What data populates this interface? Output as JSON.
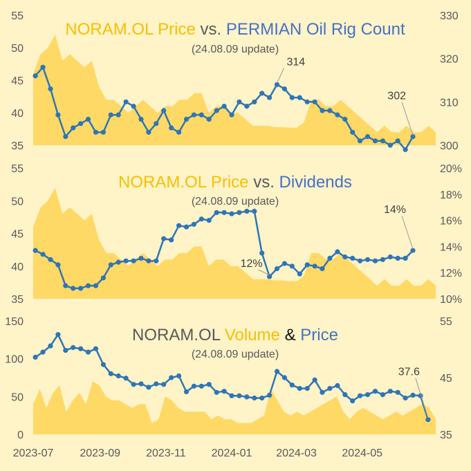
{
  "colors": {
    "background": "#fff3c8",
    "price_fill": "#ffd966",
    "series_line": "#2e75b6",
    "title_gold": "#f5c000",
    "title_blue": "#4472c4",
    "title_gray": "#595959",
    "axis_text": "#595959",
    "grid": "#d9cfa6"
  },
  "x_axis_labels": [
    "2023-07",
    "2023-09",
    "2023-11",
    "2024-01",
    "2024-03",
    "2024-05"
  ],
  "chart_data": [
    {
      "type": "area",
      "title_parts": [
        {
          "text": "NORAM.OL Price",
          "color": "gold"
        },
        {
          "text": " vs. ",
          "color": "gray"
        },
        {
          "text": "PERMIAN Oil Rig Count",
          "color": "blue"
        }
      ],
      "subtitle": "(24.08.09 update)",
      "y_left": {
        "ticks": [
          "55",
          "50",
          "45",
          "40",
          "35"
        ],
        "range": [
          35,
          55
        ]
      },
      "y_right": {
        "ticks": [
          "330",
          "320",
          "310",
          "300"
        ],
        "range": [
          300,
          330
        ]
      },
      "price_area": [
        46,
        49,
        50,
        52,
        48,
        49,
        48,
        47,
        48,
        44,
        42,
        42,
        41,
        40,
        41,
        42,
        41,
        40,
        41,
        41,
        42,
        42,
        43,
        43,
        40,
        41,
        41,
        40,
        40,
        39,
        38,
        38,
        38,
        37.8,
        37.8,
        37.7,
        37.7,
        38.5,
        42,
        42,
        41,
        41,
        42,
        41,
        40,
        39,
        38,
        37,
        38,
        37,
        37,
        38,
        37,
        37,
        38,
        37
      ]
    },
    {
      "type": "area",
      "title_parts": [
        {
          "text": "NORAM.OL Price",
          "color": "gold"
        },
        {
          "text": " vs. ",
          "color": "gray"
        },
        {
          "text": "Dividends",
          "color": "blue"
        }
      ],
      "subtitle": "(24.08.09 update)",
      "y_left": {
        "ticks": [
          "55",
          "50",
          "45",
          "40",
          "35"
        ],
        "range": [
          35,
          55
        ]
      },
      "y_right": {
        "ticks": [
          "20%",
          "18%",
          "16%",
          "14%",
          "12%",
          "10%"
        ],
        "range": [
          10,
          20
        ]
      },
      "price_area": [
        46,
        49,
        50,
        52,
        48,
        49,
        48,
        47,
        48,
        44,
        42,
        42,
        41,
        40,
        41,
        42,
        41,
        40,
        41,
        41,
        42,
        42,
        43,
        43,
        40,
        41,
        41,
        40,
        40,
        39,
        38,
        38,
        38,
        37.8,
        37.8,
        37.7,
        37.7,
        38.5,
        42,
        42,
        41,
        41,
        42,
        41,
        40,
        39,
        38,
        37,
        38,
        37,
        37,
        38,
        37,
        37,
        38,
        37
      ]
    },
    {
      "type": "area",
      "title_parts": [
        {
          "text": "NORAM.OL  ",
          "color": "gray"
        },
        {
          "text": "Volume",
          "color": "gold"
        },
        {
          "text": " & ",
          "color": "black"
        },
        {
          "text": "Price",
          "color": "blue"
        }
      ],
      "subtitle": "(24.08.09 update)",
      "y_left": {
        "ticks": [
          "150",
          "100",
          "50",
          "0"
        ],
        "range": [
          0,
          150
        ]
      },
      "y_right": {
        "ticks": [
          "55",
          "45",
          "35"
        ],
        "range": [
          35,
          55
        ]
      },
      "volume_area": [
        40,
        60,
        35,
        55,
        65,
        30,
        45,
        55,
        40,
        70,
        65,
        50,
        45,
        45,
        40,
        35,
        40,
        40,
        15,
        20,
        50,
        45,
        35,
        30,
        30,
        30,
        30,
        20,
        25,
        20,
        20,
        15,
        15,
        15,
        20,
        25,
        60,
        45,
        30,
        25,
        30,
        25,
        30,
        35,
        40,
        45,
        50,
        30,
        20,
        30,
        35,
        30,
        25,
        20,
        25,
        30,
        25,
        30,
        35,
        40,
        35,
        20
      ]
    }
  ],
  "series": {
    "rig_count": {
      "name": "PERMIAN Oil Rig Count",
      "points": [
        [
          "2023-07-03",
          316
        ],
        [
          "2023-07-10",
          318
        ],
        [
          "2023-07-17",
          313
        ],
        [
          "2023-07-24",
          307
        ],
        [
          "2023-07-31",
          302
        ],
        [
          "2023-08-07",
          304
        ],
        [
          "2023-08-14",
          305
        ],
        [
          "2023-08-21",
          306
        ],
        [
          "2023-08-28",
          303
        ],
        [
          "2023-09-04",
          303
        ],
        [
          "2023-09-11",
          307
        ],
        [
          "2023-09-18",
          307
        ],
        [
          "2023-09-25",
          310
        ],
        [
          "2023-10-02",
          309
        ],
        [
          "2023-10-09",
          306
        ],
        [
          "2023-10-16",
          303
        ],
        [
          "2023-10-23",
          305
        ],
        [
          "2023-10-30",
          308
        ],
        [
          "2023-11-06",
          304
        ],
        [
          "2023-11-13",
          303
        ],
        [
          "2023-11-20",
          306
        ],
        [
          "2023-11-27",
          307
        ],
        [
          "2023-12-04",
          307
        ],
        [
          "2023-12-11",
          306
        ],
        [
          "2023-12-18",
          308
        ],
        [
          "2023-12-25",
          309
        ],
        [
          "2024-01-01",
          307
        ],
        [
          "2024-01-08",
          310
        ],
        [
          "2024-01-15",
          309
        ],
        [
          "2024-01-22",
          310
        ],
        [
          "2024-01-29",
          312
        ],
        [
          "2024-02-05",
          311
        ],
        [
          "2024-02-12",
          314
        ],
        [
          "2024-02-19",
          313
        ],
        [
          "2024-02-26",
          311
        ],
        [
          "2024-03-04",
          311
        ],
        [
          "2024-03-11",
          310
        ],
        [
          "2024-03-18",
          310
        ],
        [
          "2024-03-25",
          308
        ],
        [
          "2024-04-01",
          308
        ],
        [
          "2024-04-08",
          307
        ],
        [
          "2024-04-15",
          306
        ],
        [
          "2024-04-22",
          303
        ],
        [
          "2024-04-29",
          301
        ],
        [
          "2024-05-06",
          302
        ],
        [
          "2024-05-13",
          301
        ],
        [
          "2024-05-20",
          301
        ],
        [
          "2024-05-27",
          300
        ],
        [
          "2024-06-03",
          301
        ],
        [
          "2024-06-10",
          299
        ],
        [
          "2024-06-17",
          302
        ]
      ],
      "annotations": [
        [
          "2024-02-12",
          "314"
        ],
        [
          "2024-06-17",
          "302"
        ]
      ]
    },
    "dividends": {
      "name": "Dividends",
      "points": [
        [
          "2023-07-03",
          13.7
        ],
        [
          "2023-07-10",
          13.4
        ],
        [
          "2023-07-17",
          13.0
        ],
        [
          "2023-07-24",
          12.6
        ],
        [
          "2023-07-31",
          11.0
        ],
        [
          "2023-08-07",
          10.8
        ],
        [
          "2023-08-14",
          10.8
        ],
        [
          "2023-08-21",
          11.0
        ],
        [
          "2023-08-28",
          11.0
        ],
        [
          "2023-09-04",
          11.6
        ],
        [
          "2023-09-11",
          12.6
        ],
        [
          "2023-09-18",
          12.8
        ],
        [
          "2023-09-25",
          12.9
        ],
        [
          "2023-10-02",
          12.9
        ],
        [
          "2023-10-09",
          13.1
        ],
        [
          "2023-10-16",
          12.9
        ],
        [
          "2023-10-23",
          12.9
        ],
        [
          "2023-10-30",
          14.6
        ],
        [
          "2023-11-06",
          14.5
        ],
        [
          "2023-11-13",
          15.6
        ],
        [
          "2023-11-20",
          15.5
        ],
        [
          "2023-11-27",
          15.7
        ],
        [
          "2023-12-04",
          16.1
        ],
        [
          "2023-12-11",
          16.0
        ],
        [
          "2023-12-18",
          16.6
        ],
        [
          "2023-12-25",
          16.6
        ],
        [
          "2024-01-01",
          16.5
        ],
        [
          "2024-01-08",
          16.6
        ],
        [
          "2024-01-15",
          16.7
        ],
        [
          "2024-01-22",
          16.7
        ],
        [
          "2024-01-29",
          13.5
        ],
        [
          "2024-02-05",
          11.7
        ],
        [
          "2024-02-12",
          12.3
        ],
        [
          "2024-02-19",
          12.7
        ],
        [
          "2024-02-26",
          12.5
        ],
        [
          "2024-03-04",
          11.9
        ],
        [
          "2024-03-11",
          12.6
        ],
        [
          "2024-03-18",
          12.5
        ],
        [
          "2024-03-25",
          12.3
        ],
        [
          "2024-04-01",
          13.1
        ],
        [
          "2024-04-08",
          13.6
        ],
        [
          "2024-04-15",
          13.2
        ],
        [
          "2024-04-22",
          13.1
        ],
        [
          "2024-04-29",
          12.9
        ],
        [
          "2024-05-06",
          13.0
        ],
        [
          "2024-05-13",
          12.9
        ],
        [
          "2024-05-20",
          13.0
        ],
        [
          "2024-05-27",
          13.2
        ],
        [
          "2024-06-03",
          13.1
        ],
        [
          "2024-06-10",
          13.1
        ],
        [
          "2024-06-17",
          13.7
        ]
      ],
      "annotations": [
        [
          "2024-02-05",
          "12%"
        ],
        [
          "2024-06-17",
          "14%"
        ]
      ]
    },
    "price": {
      "name": "Price",
      "points": [
        [
          "2023-07-03",
          48.6
        ],
        [
          "2023-07-10",
          49.5
        ],
        [
          "2023-07-17",
          50.6
        ],
        [
          "2023-07-24",
          52.6
        ],
        [
          "2023-07-31",
          49.8
        ],
        [
          "2023-08-07",
          50.3
        ],
        [
          "2023-08-14",
          50.1
        ],
        [
          "2023-08-21",
          49.5
        ],
        [
          "2023-08-28",
          50.1
        ],
        [
          "2023-09-04",
          47.3
        ],
        [
          "2023-09-11",
          45.7
        ],
        [
          "2023-09-18",
          45.3
        ],
        [
          "2023-09-25",
          44.9
        ],
        [
          "2023-10-02",
          43.8
        ],
        [
          "2023-10-09",
          43.9
        ],
        [
          "2023-10-16",
          43.3
        ],
        [
          "2023-10-23",
          43.9
        ],
        [
          "2023-10-30",
          43.8
        ],
        [
          "2023-11-06",
          45.0
        ],
        [
          "2023-11-13",
          45.3
        ],
        [
          "2023-11-20",
          42.5
        ],
        [
          "2023-11-27",
          43.5
        ],
        [
          "2023-12-04",
          43.5
        ],
        [
          "2023-12-11",
          43.8
        ],
        [
          "2023-12-18",
          42.4
        ],
        [
          "2023-12-25",
          42.6
        ],
        [
          "2024-01-01",
          41.8
        ],
        [
          "2024-01-08",
          41.8
        ],
        [
          "2024-01-15",
          41.6
        ],
        [
          "2024-01-22",
          41.4
        ],
        [
          "2024-01-29",
          41.4
        ],
        [
          "2024-02-05",
          41.9
        ],
        [
          "2024-02-12",
          46.1
        ],
        [
          "2024-02-19",
          45.0
        ],
        [
          "2024-02-26",
          43.7
        ],
        [
          "2024-03-04",
          43.1
        ],
        [
          "2024-03-11",
          43.1
        ],
        [
          "2024-03-18",
          44.6
        ],
        [
          "2024-03-25",
          42.4
        ],
        [
          "2024-04-01",
          43.1
        ],
        [
          "2024-04-08",
          43.6
        ],
        [
          "2024-04-15",
          42.0
        ],
        [
          "2024-04-22",
          40.9
        ],
        [
          "2024-04-29",
          41.8
        ],
        [
          "2024-05-06",
          42.0
        ],
        [
          "2024-05-13",
          42.6
        ],
        [
          "2024-05-20",
          42.0
        ],
        [
          "2024-05-27",
          42.6
        ],
        [
          "2024-06-03",
          42.4
        ],
        [
          "2024-06-10",
          41.4
        ],
        [
          "2024-06-17",
          41.9
        ],
        [
          "2024-06-24",
          41.8
        ],
        [
          "2024-07-01",
          37.6
        ]
      ],
      "annotations": [
        [
          "2024-07-01",
          "37.6"
        ]
      ]
    }
  }
}
